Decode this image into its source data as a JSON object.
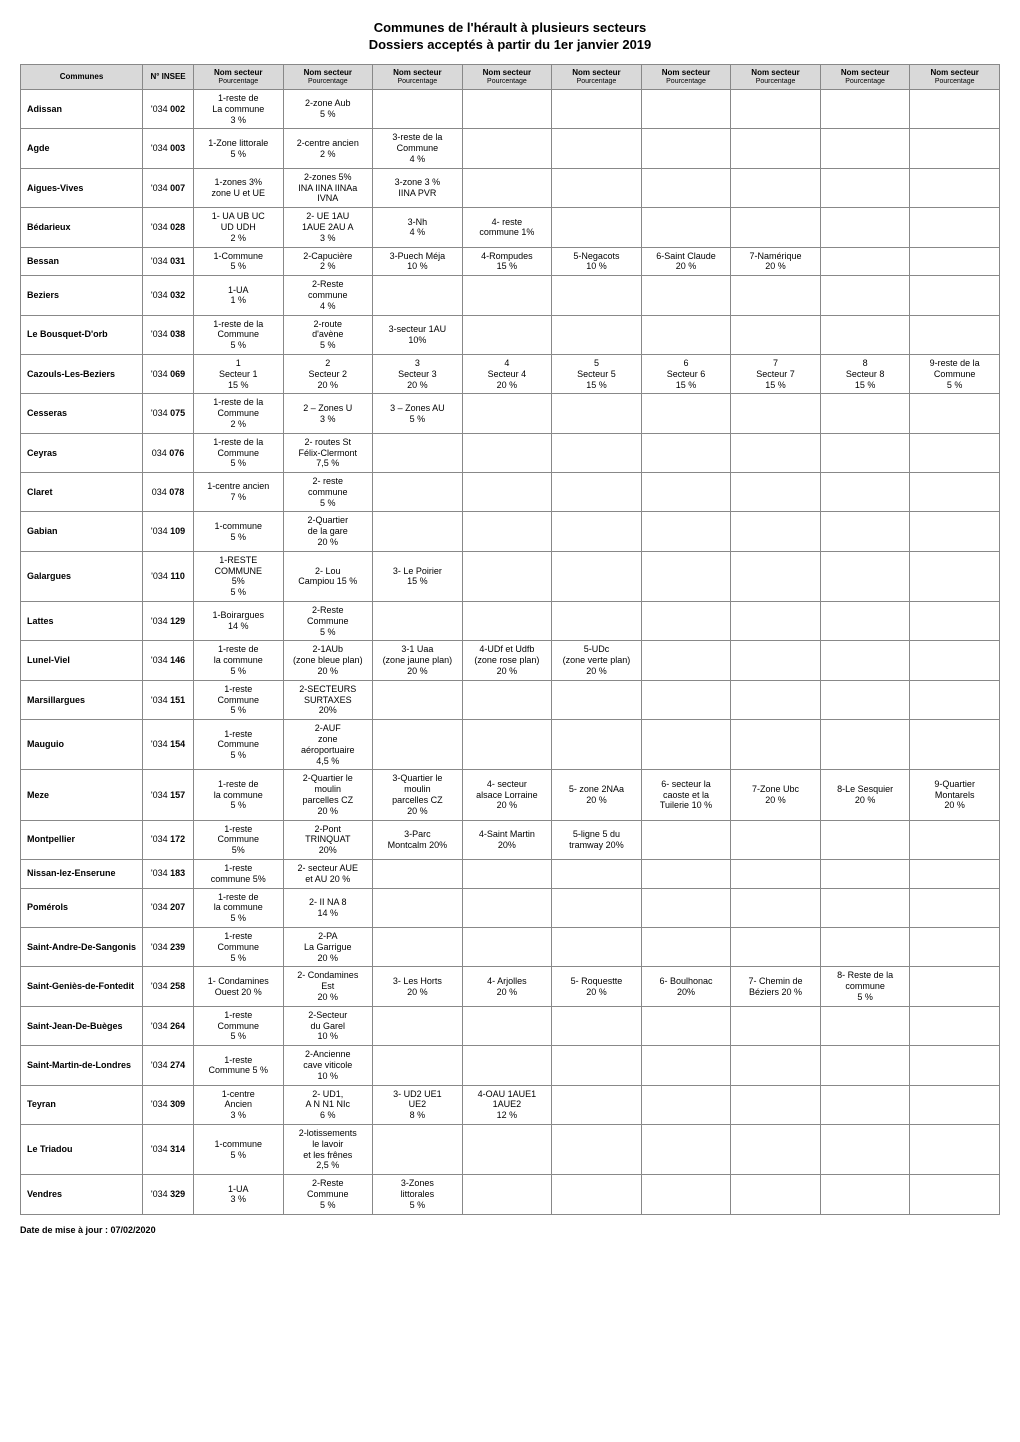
{
  "title": "Communes de l'hérault à plusieurs secteurs",
  "subtitle": "Dossiers acceptés à partir du 1er janvier 2019",
  "footer": "Date de mise à jour : 07/02/2020",
  "colors": {
    "header_bg": "#d9d9d9",
    "border": "#888888",
    "page_bg": "#ffffff"
  },
  "headers": [
    {
      "top": "Communes",
      "bot": ""
    },
    {
      "top": "N° INSEE",
      "bot": ""
    },
    {
      "top": "Nom secteur",
      "bot": "Pourcentage"
    },
    {
      "top": "Nom secteur",
      "bot": "Pourcentage"
    },
    {
      "top": "Nom secteur",
      "bot": "Pourcentage"
    },
    {
      "top": "Nom secteur",
      "bot": "Pourcentage"
    },
    {
      "top": "Nom secteur",
      "bot": "Pourcentage"
    },
    {
      "top": "Nom secteur",
      "bot": "Pourcentage"
    },
    {
      "top": "Nom secteur",
      "bot": "Pourcentage"
    },
    {
      "top": "Nom secteur",
      "bot": "Pourcentage"
    },
    {
      "top": "Nom secteur",
      "bot": "Pourcentage"
    }
  ],
  "rows": [
    {
      "commune": "Adissan",
      "insee": "'034 002",
      "cells": [
        "1-reste de\nLa commune\n3 %",
        "2-zone Aub\n5 %",
        "",
        "",
        "",
        "",
        "",
        "",
        ""
      ]
    },
    {
      "commune": "Agde",
      "insee": "'034 003",
      "cells": [
        "1-Zone littorale\n5 %",
        "2-centre ancien\n2 %",
        "3-reste de la\nCommune\n4 %",
        "",
        "",
        "",
        "",
        "",
        ""
      ]
    },
    {
      "commune": "Aigues-Vives",
      "insee": "'034 007",
      "cells": [
        "1-zones 3%\nzone U et UE",
        "2-zones 5%\nINA IINA IINAa\nIVNA",
        "3-zone 3 %\nIINA PVR",
        "",
        "",
        "",
        "",
        "",
        ""
      ]
    },
    {
      "commune": "Bédarieux",
      "insee": "'034 028",
      "cells": [
        "1- UA UB UC\nUD UDH\n2 %",
        "2- UE 1AU\n1AUE 2AU A\n3 %",
        "3-Nh\n4 %",
        "4- reste\ncommune 1%",
        "",
        "",
        "",
        "",
        ""
      ]
    },
    {
      "commune": "Bessan",
      "insee": "'034 031",
      "cells": [
        "1-Commune\n5 %",
        "2-Capucière\n2 %",
        "3-Puech Méja\n10 %",
        "4-Rompudes\n15 %",
        "5-Negacots\n10 %",
        "6-Saint Claude\n20 %",
        "7-Namérique\n20 %",
        "",
        ""
      ]
    },
    {
      "commune": "Beziers",
      "insee": "'034 032",
      "cells": [
        "1-UA\n1 %",
        "2-Reste\ncommune\n4 %",
        "",
        "",
        "",
        "",
        "",
        "",
        ""
      ]
    },
    {
      "commune": "Le Bousquet-D'orb",
      "insee": "'034 038",
      "cells": [
        "1-reste de la\nCommune\n5 %",
        "2-route\nd'avène\n5 %",
        "3-secteur 1AU\n10%",
        "",
        "",
        "",
        "",
        "",
        ""
      ]
    },
    {
      "commune": "Cazouls-Les-Beziers",
      "insee": "'034 069",
      "cells": [
        "1\nSecteur 1\n15 %",
        "2\nSecteur 2\n20 %",
        "3\nSecteur 3\n20 %",
        "4\nSecteur 4\n20 %",
        "5\nSecteur 5\n15 %",
        "6\nSecteur 6\n15 %",
        "7\nSecteur 7\n15 %",
        "8\nSecteur 8\n15 %",
        "9-reste de la\nCommune\n5 %"
      ]
    },
    {
      "commune": "Cesseras",
      "insee": "'034 075",
      "cells": [
        "1-reste de la\nCommune\n2 %",
        "2 – Zones U\n3 %",
        "3 – Zones AU\n5 %",
        "",
        "",
        "",
        "",
        "",
        ""
      ]
    },
    {
      "commune": "Ceyras",
      "insee": "034 076",
      "cells": [
        "1-reste de la\nCommune\n5 %",
        "2- routes St\nFélix-Clermont\n7,5 %",
        "",
        "",
        "",
        "",
        "",
        "",
        ""
      ]
    },
    {
      "commune": "Claret",
      "insee": "034 078",
      "cells": [
        "1-centre ancien\n7 %",
        "2- reste\ncommune\n5 %",
        "",
        "",
        "",
        "",
        "",
        "",
        ""
      ]
    },
    {
      "commune": "Gabian",
      "insee": "'034 109",
      "cells": [
        "1-commune\n5 %",
        "2-Quartier\nde la gare\n20 %",
        "",
        "",
        "",
        "",
        "",
        "",
        ""
      ]
    },
    {
      "commune": "Galargues",
      "insee": "'034 110",
      "cells": [
        "1-RESTE\nCOMMUNE\n5%\n5 %",
        "2- Lou\nCampiou 15 %",
        "3- Le Poirier\n15 %",
        "",
        "",
        "",
        "",
        "",
        ""
      ]
    },
    {
      "commune": "Lattes",
      "insee": "'034 129",
      "cells": [
        "1-Boirargues\n14 %",
        "2-Reste\nCommune\n5 %",
        "",
        "",
        "",
        "",
        "",
        "",
        ""
      ]
    },
    {
      "commune": "Lunel-Viel",
      "insee": "'034 146",
      "cells": [
        "1-reste de\nla commune\n5 %",
        "2-1AUb\n(zone bleue plan)\n20 %",
        "3-1 Uaa\n(zone jaune plan)\n20 %",
        "4-UDf et Udfb\n(zone rose plan)\n20 %",
        "5-UDc\n(zone verte plan)\n20 %",
        "",
        "",
        "",
        ""
      ]
    },
    {
      "commune": "Marsillargues",
      "insee": "'034 151",
      "cells": [
        "1-reste\nCommune\n5 %",
        "2-SECTEURS\nSURTAXES\n20%",
        "",
        "",
        "",
        "",
        "",
        "",
        ""
      ]
    },
    {
      "commune": "Mauguio",
      "insee": "'034 154",
      "cells": [
        "1-reste\nCommune\n5 %",
        "2-AUF\nzone\naéroportuaire\n4,5 %",
        "",
        "",
        "",
        "",
        "",
        "",
        ""
      ]
    },
    {
      "commune": "Meze",
      "insee": "'034 157",
      "cells": [
        "1-reste de\nla commune\n5 %",
        "2-Quartier le\nmoulin\nparcelles CZ\n20 %",
        "3-Quartier le\nmoulin\nparcelles CZ\n20 %",
        "4- secteur\nalsace Lorraine\n20 %",
        "5- zone 2NAa\n20 %",
        "6- secteur la\ncaoste et la\nTuilerie 10 %",
        "7-Zone Ubc\n20 %",
        "8-Le Sesquier\n20 %",
        "9-Quartier\nMontarels\n20 %"
      ]
    },
    {
      "commune": "Montpellier",
      "insee": "'034 172",
      "cells": [
        "1-reste\nCommune\n5%",
        "2-Pont\nTRINQUAT\n20%",
        "3-Parc\nMontcalm 20%",
        "4-Saint Martin\n20%",
        "5-ligne 5 du\ntramway 20%",
        "",
        "",
        "",
        ""
      ]
    },
    {
      "commune": "Nissan-lez-Enserune",
      "insee": "'034 183",
      "cells": [
        "1-reste\ncommune 5%",
        "2- secteur AUE\net AU 20 %",
        "",
        "",
        "",
        "",
        "",
        "",
        ""
      ]
    },
    {
      "commune": "Pomérols",
      "insee": "'034 207",
      "cells": [
        "1-reste de\nla commune\n5 %",
        "2- II NA 8\n14 %",
        "",
        "",
        "",
        "",
        "",
        "",
        ""
      ]
    },
    {
      "commune": "Saint-Andre-De-Sangonis",
      "insee": "'034 239",
      "cells": [
        "1-reste\nCommune\n5 %",
        "2-PA\nLa Garrigue\n20 %",
        "",
        "",
        "",
        "",
        "",
        "",
        ""
      ]
    },
    {
      "commune": "Saint-Geniès-de-Fontedit",
      "insee": "'034 258",
      "cells": [
        "1- Condamines\nOuest     20 %",
        "2- Condamines\nEst\n20 %",
        "3- Les Horts\n20 %",
        "4- Arjolles\n20 %",
        "5- Roquestte\n20 %",
        "6- Boulhonac\n20%",
        "7- Chemin de\nBéziers   20 %",
        "8- Reste de la\ncommune\n5 %",
        ""
      ]
    },
    {
      "commune": "Saint-Jean-De-Buèges",
      "insee": "'034 264",
      "cells": [
        "1-reste\nCommune\n5 %",
        "2-Secteur\ndu Garel\n10 %",
        "",
        "",
        "",
        "",
        "",
        "",
        ""
      ]
    },
    {
      "commune": "Saint-Martin-de-Londres",
      "insee": "'034 274",
      "cells": [
        "1-reste\nCommune  5 %",
        "2-Ancienne\ncave viticole\n10 %",
        "",
        "",
        "",
        "",
        "",
        "",
        ""
      ]
    },
    {
      "commune": "Teyran",
      "insee": "'034 309",
      "cells": [
        "1-centre\nAncien\n3 %",
        "2- UD1,\nA N N1 NIc\n6 %",
        "3- UD2 UE1\nUE2\n8 %",
        "4-OAU 1AUE1\n1AUE2\n12 %",
        "",
        "",
        "",
        "",
        ""
      ]
    },
    {
      "commune": "Le Triadou",
      "insee": "'034 314",
      "cells": [
        "1-commune\n5 %",
        "2-lotissements\nle lavoir\net les frênes\n2,5 %",
        "",
        "",
        "",
        "",
        "",
        "",
        ""
      ]
    },
    {
      "commune": "Vendres",
      "insee": "'034 329",
      "cells": [
        "1-UA\n3 %",
        "2-Reste\nCommune\n5 %",
        "3-Zones\nlittorales\n5 %",
        "",
        "",
        "",
        "",
        "",
        ""
      ]
    }
  ]
}
